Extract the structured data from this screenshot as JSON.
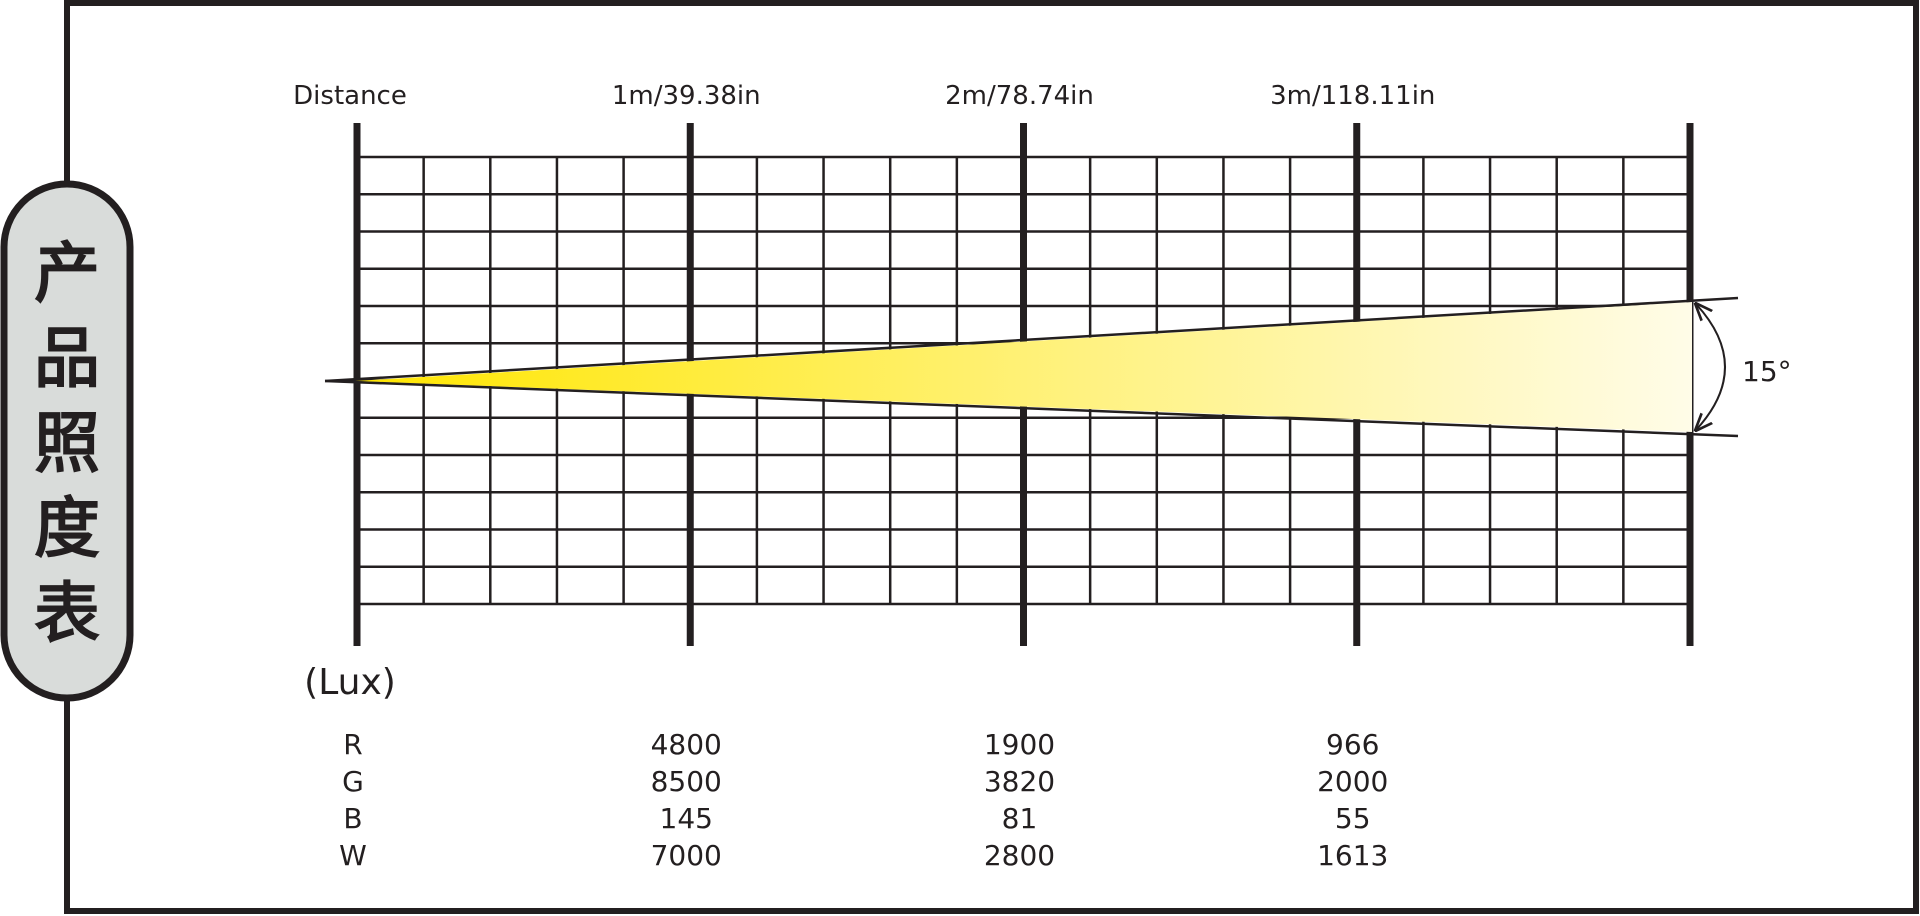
{
  "side_tab": {
    "characters": [
      "产",
      "品",
      "照",
      "度",
      "表"
    ]
  },
  "chart_data": {
    "type": "beam-illuminance-diagram",
    "title": "",
    "distance_label": "Distance",
    "distances": [
      "1m/39.38in",
      "2m/78.74in",
      "3m/118.11in"
    ],
    "beam_angle_label": "15°",
    "beam_angle_deg": 15,
    "unit_label": "(Lux)",
    "series": [
      {
        "name": "R",
        "values": [
          4800,
          1900,
          966
        ]
      },
      {
        "name": "G",
        "values": [
          8500,
          3820,
          2000
        ]
      },
      {
        "name": "B",
        "values": [
          145,
          81,
          55
        ]
      },
      {
        "name": "W",
        "values": [
          7000,
          2800,
          1613
        ]
      }
    ],
    "beam_colors": [
      "#ffe600",
      "#fff176",
      "#fffce8"
    ],
    "line_color": "#231f20",
    "tab_color": "#d9dcda"
  }
}
